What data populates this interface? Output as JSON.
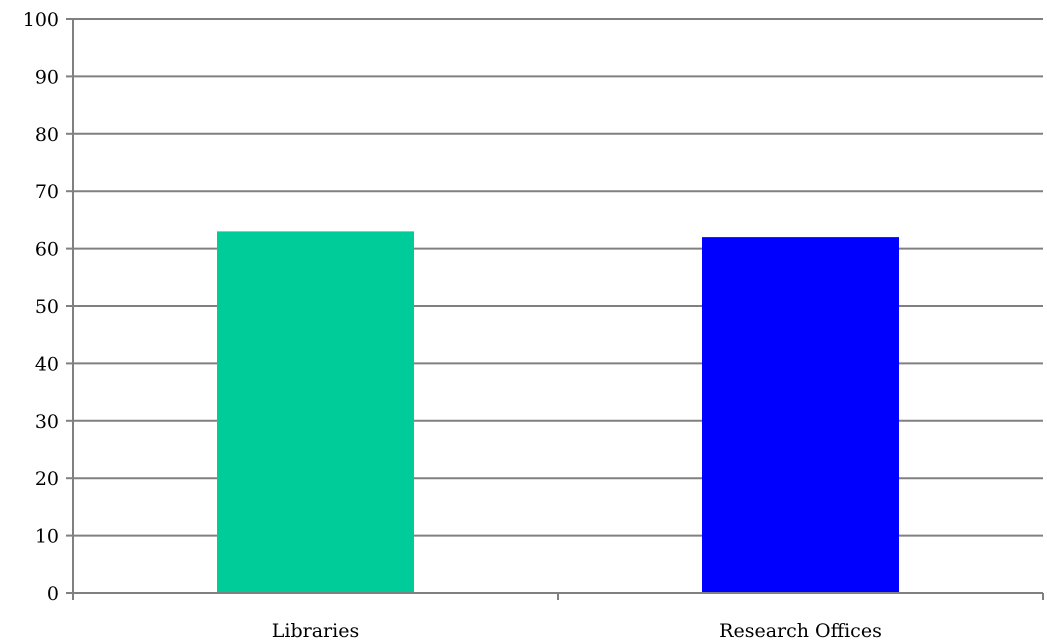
{
  "chart_data": {
    "type": "bar",
    "title": "",
    "xlabel": "",
    "ylabel": "",
    "categories": [
      "Libraries",
      "Research Offices"
    ],
    "values": [
      63,
      62
    ],
    "bar_colors": [
      "#00CC99",
      "#0000FF"
    ],
    "ylim": [
      0,
      100
    ],
    "yticks": [
      0,
      10,
      20,
      30,
      40,
      50,
      60,
      70,
      80,
      90,
      100
    ],
    "grid": true,
    "legend": "none"
  }
}
